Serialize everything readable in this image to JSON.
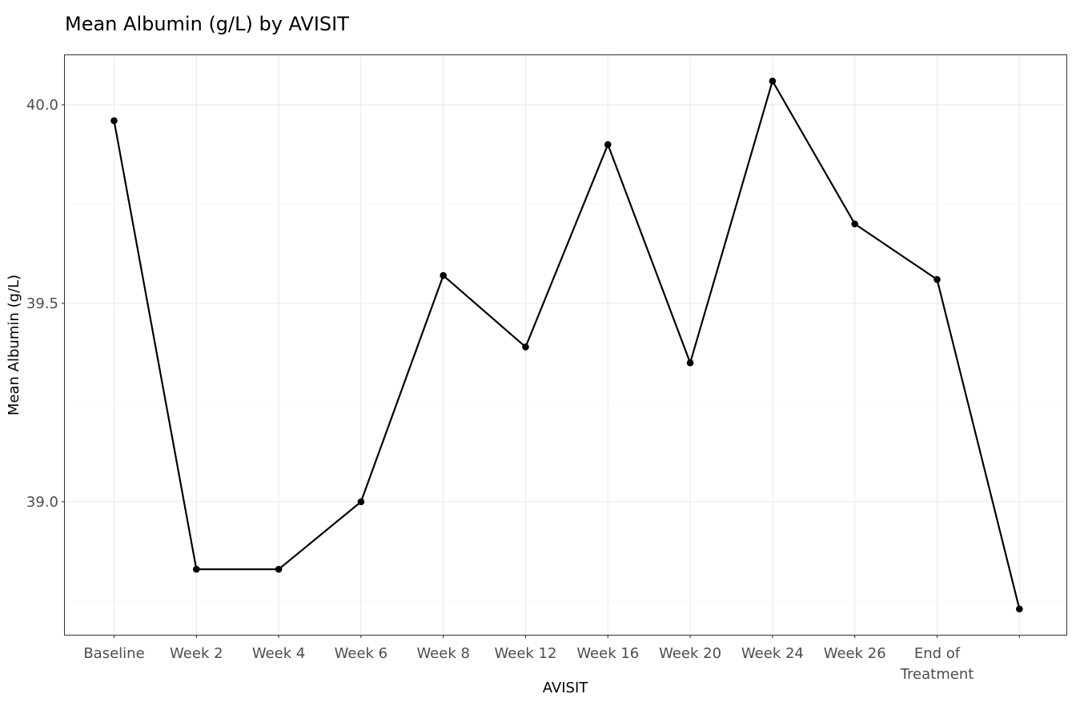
{
  "chart_data": {
    "type": "line",
    "title": "Mean Albumin (g/L) by AVISIT",
    "xlabel": "AVISIT",
    "ylabel": "Mean Albumin (g/L)",
    "categories": [
      "Baseline",
      "Week 2",
      "Week 4",
      "Week 6",
      "Week 8",
      "Week 12",
      "Week 16",
      "Week 20",
      "Week 24",
      "Week 26",
      "End of\nTreatment",
      ""
    ],
    "series": [
      {
        "values": [
          39.96,
          38.83,
          38.83,
          39.0,
          39.57,
          39.39,
          39.9,
          39.35,
          40.06,
          39.7,
          39.56,
          38.73
        ]
      }
    ],
    "yticks": [
      39.0,
      39.5,
      40.0
    ],
    "ytick_labels": [
      "39.0",
      "39.5",
      "40.0"
    ],
    "ylim": [
      38.665,
      40.125
    ],
    "grid": true,
    "line_color": "#000000",
    "grid_color": "#ebebeb",
    "panel_border_color": "#333333"
  }
}
